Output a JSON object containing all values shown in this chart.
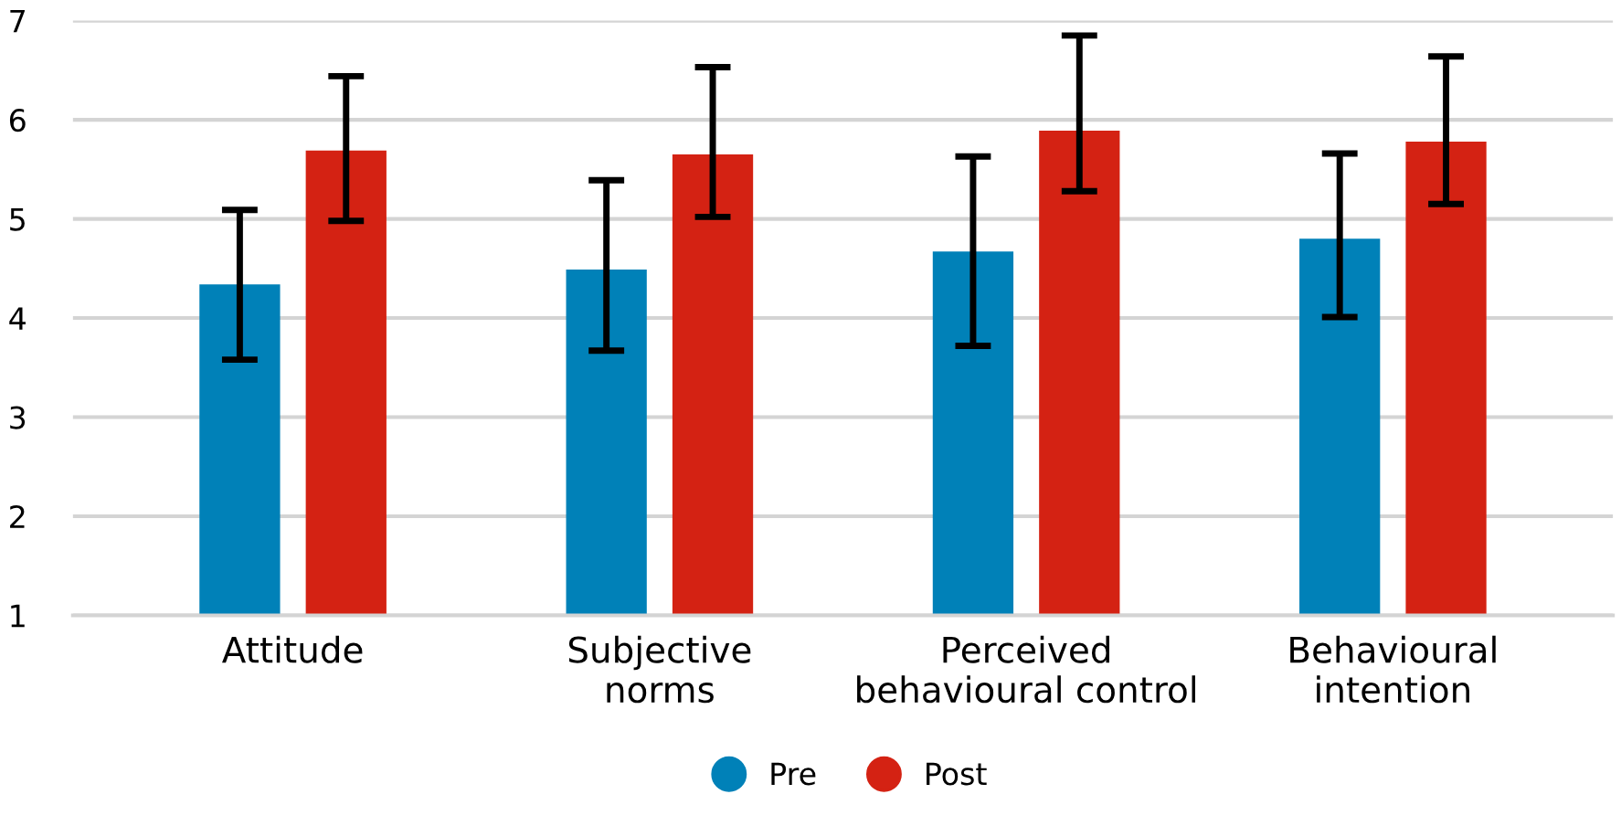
{
  "chart_data": {
    "type": "bar",
    "categories": [
      "Attitude",
      "Subjective\nnorms",
      "Perceived\nbehavioural control",
      "Behavioural\nintention"
    ],
    "series": [
      {
        "name": "Pre",
        "color": "#0081b8",
        "values": [
          4.34,
          4.49,
          4.67,
          4.8
        ],
        "errors": [
          [
            3.58,
            5.09
          ],
          [
            3.67,
            5.39
          ],
          [
            3.72,
            5.63
          ],
          [
            4.01,
            5.66
          ]
        ]
      },
      {
        "name": "Post",
        "color": "#d42213",
        "values": [
          5.69,
          5.65,
          5.89,
          5.78
        ],
        "errors": [
          [
            4.98,
            6.44
          ],
          [
            5.02,
            6.53
          ],
          [
            5.28,
            6.85
          ],
          [
            5.15,
            6.64
          ]
        ]
      }
    ],
    "ylim": [
      1,
      7
    ],
    "yticks": [
      1,
      2,
      3,
      4,
      5,
      6,
      7
    ],
    "grid": "y",
    "legend": "bottom"
  }
}
